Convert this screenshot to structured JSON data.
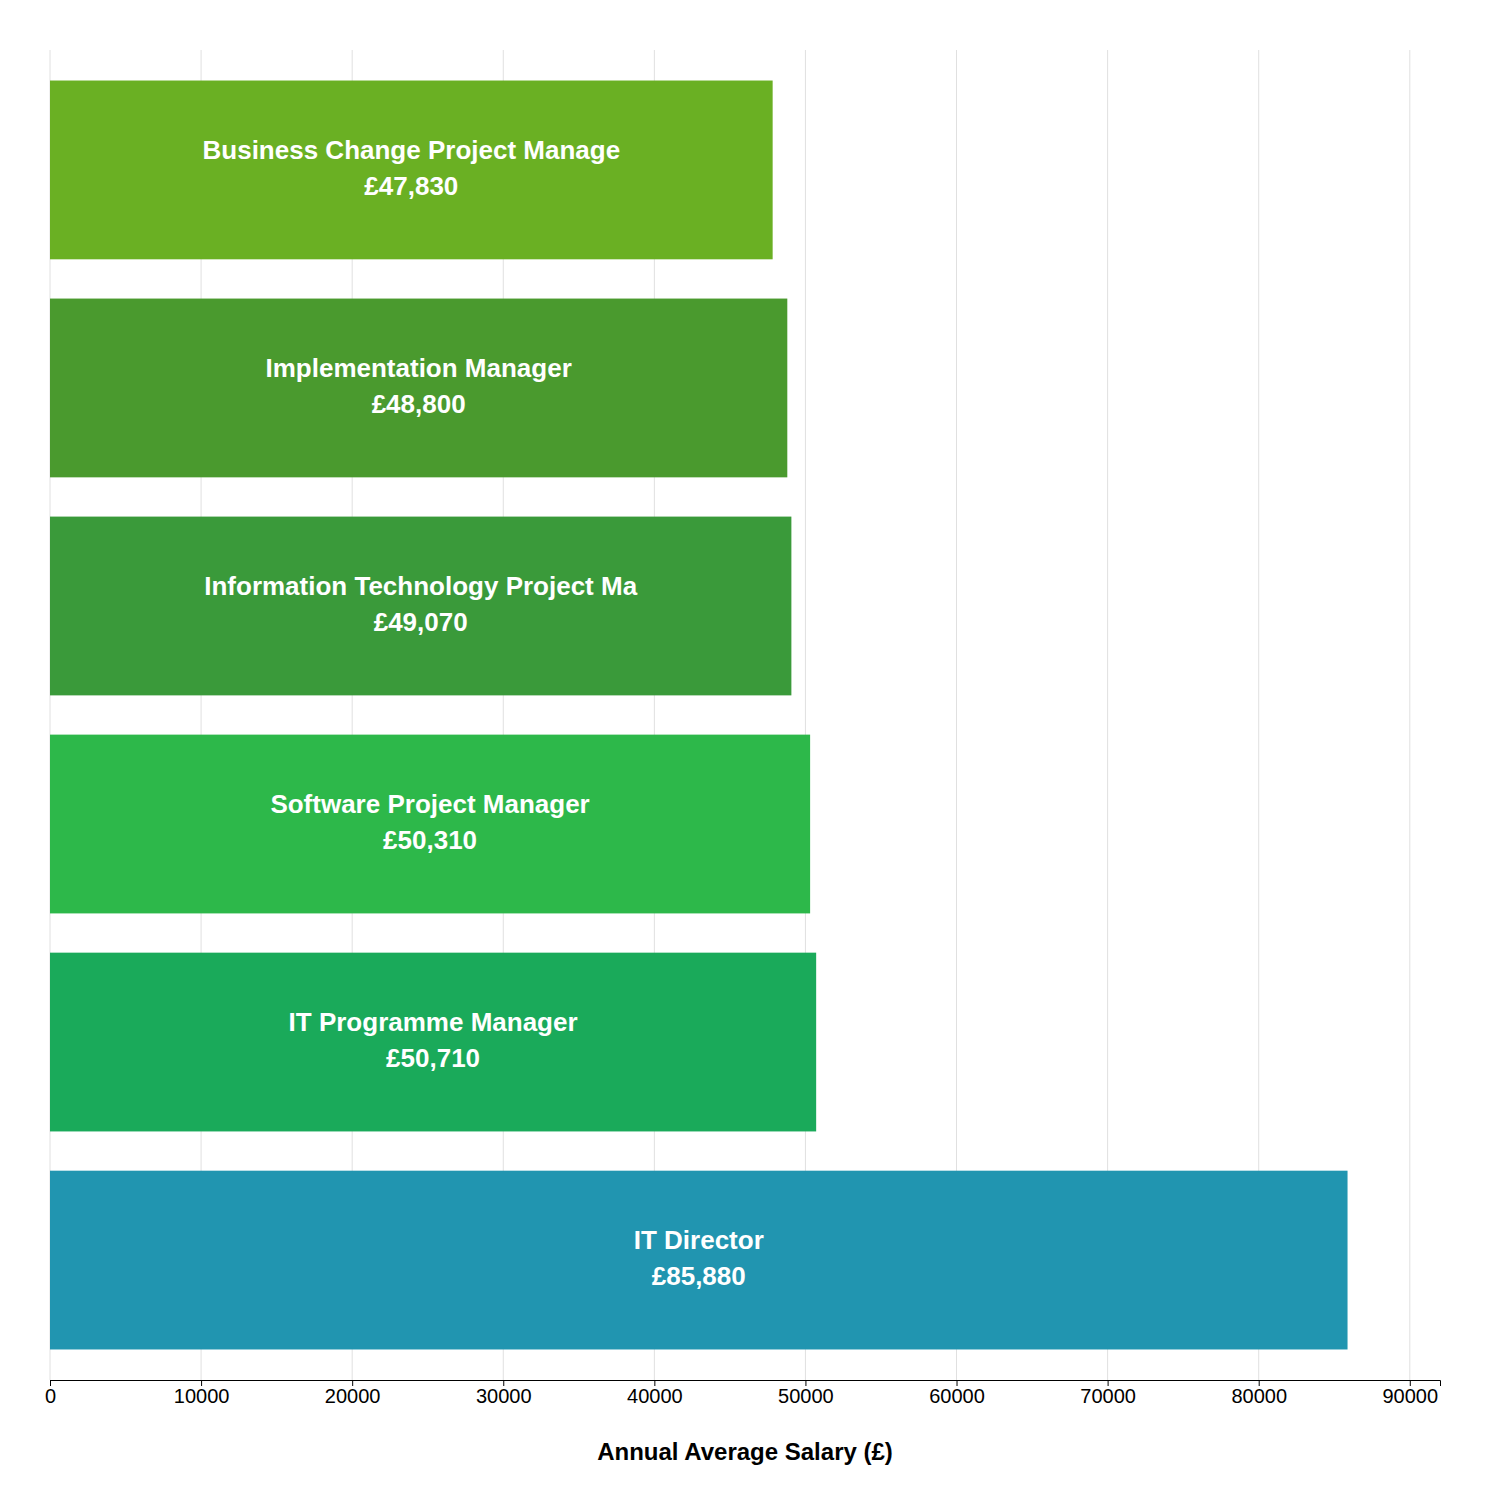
{
  "chart_data": {
    "type": "bar",
    "orientation": "horizontal",
    "categories": [
      "IT Director",
      "IT Programme Manager",
      "Software Project Manager",
      "Information Technology Project Ma",
      "Implementation Manager",
      "Business Change Project Manage"
    ],
    "values": [
      85880,
      50710,
      50310,
      49070,
      48800,
      47830
    ],
    "value_labels": [
      "£85,880",
      "£50,710",
      "£50,310",
      "£49,070",
      "£48,800",
      "£47,830"
    ],
    "data_labels": true,
    "colors": [
      "#2195b0",
      "#1aaa5a",
      "#2db84a",
      "#3a9a3a",
      "#4a9a2e",
      "#6ab023"
    ],
    "xlabel": "Annual Average Salary (£)",
    "xlim": [
      0,
      92000
    ],
    "xticks": [
      0,
      10000,
      20000,
      30000,
      40000,
      50000,
      60000,
      70000,
      80000,
      90000
    ],
    "grid": true,
    "tick_labels": "x"
  }
}
